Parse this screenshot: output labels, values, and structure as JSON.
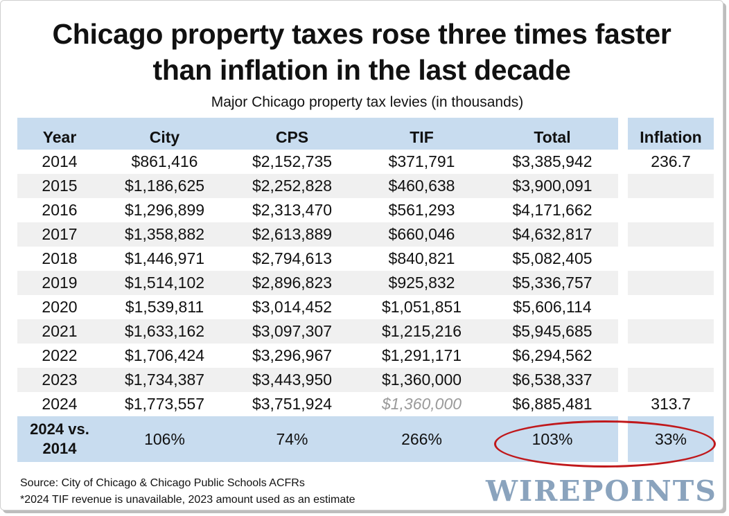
{
  "title_line1": "Chicago property taxes rose three times faster",
  "title_line2": "than inflation in the last decade",
  "subtitle": "Major Chicago property tax levies (in thousands)",
  "chart_data": {
    "type": "table",
    "columns": [
      "Year",
      "City",
      "CPS",
      "TIF",
      "Total",
      "Inflation"
    ],
    "rows": [
      {
        "year": "2014",
        "city": "$861,416",
        "cps": "$2,152,735",
        "tif": "$371,791",
        "total": "$3,385,942",
        "inflation": "236.7"
      },
      {
        "year": "2015",
        "city": "$1,186,625",
        "cps": "$2,252,828",
        "tif": "$460,638",
        "total": "$3,900,091",
        "inflation": ""
      },
      {
        "year": "2016",
        "city": "$1,296,899",
        "cps": "$2,313,470",
        "tif": "$561,293",
        "total": "$4,171,662",
        "inflation": ""
      },
      {
        "year": "2017",
        "city": "$1,358,882",
        "cps": "$2,613,889",
        "tif": "$660,046",
        "total": "$4,632,817",
        "inflation": ""
      },
      {
        "year": "2018",
        "city": "$1,446,971",
        "cps": "$2,794,613",
        "tif": "$840,821",
        "total": "$5,082,405",
        "inflation": ""
      },
      {
        "year": "2019",
        "city": "$1,514,102",
        "cps": "$2,896,823",
        "tif": "$925,832",
        "total": "$5,336,757",
        "inflation": ""
      },
      {
        "year": "2020",
        "city": "$1,539,811",
        "cps": "$3,014,452",
        "tif": "$1,051,851",
        "total": "$5,606,114",
        "inflation": ""
      },
      {
        "year": "2021",
        "city": "$1,633,162",
        "cps": "$3,097,307",
        "tif": "$1,215,216",
        "total": "$5,945,685",
        "inflation": ""
      },
      {
        "year": "2022",
        "city": "$1,706,424",
        "cps": "$3,296,967",
        "tif": "$1,291,171",
        "total": "$6,294,562",
        "inflation": ""
      },
      {
        "year": "2023",
        "city": "$1,734,387",
        "cps": "$3,443,950",
        "tif": "$1,360,000",
        "total": "$6,538,337",
        "inflation": ""
      },
      {
        "year": "2024",
        "city": "$1,773,557",
        "cps": "$3,751,924",
        "tif": "$1,360,000",
        "total": "$6,885,481",
        "inflation": "313.7",
        "tif_estimated": true
      }
    ],
    "summary": {
      "label_line1": "2024 vs.",
      "label_line2": "2014",
      "city": "106%",
      "cps": "74%",
      "tif": "266%",
      "total": "103%",
      "inflation": "33%"
    },
    "highlighted_cells": [
      "total",
      "inflation"
    ],
    "header_color": "#c8dcef",
    "stripe_color": "#f0f0f0",
    "estimate_color": "#9a9a9a",
    "highlight_color": "#c0181b"
  },
  "source": "Source: City of Chicago & Chicago Public Schools ACFRs",
  "note": "*2024 TIF revenue is unavailable, 2023 amount used as an estimate",
  "logo_text": "WIREPOINTS"
}
